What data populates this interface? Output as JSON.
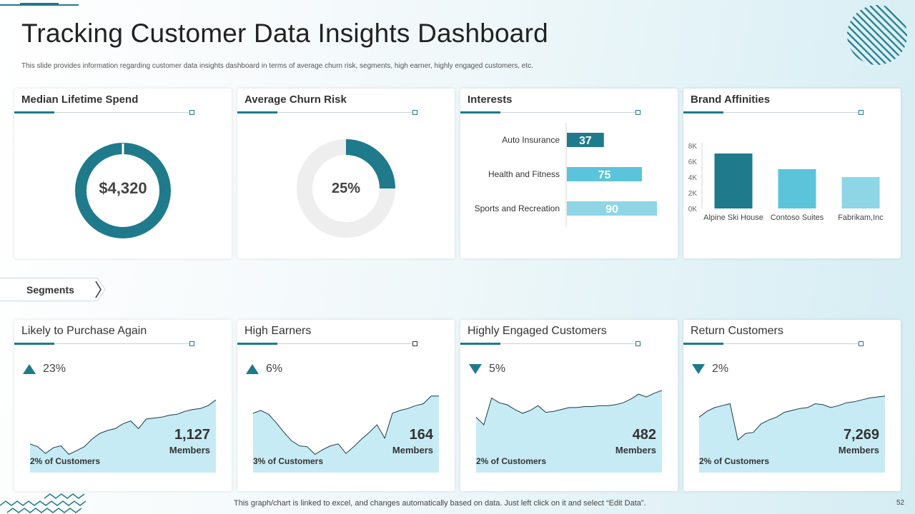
{
  "header": {
    "title": "Tracking Customer Data Insights Dashboard",
    "subtitle": "This slide provides information regarding customer data insights dashboard in terms of average churn risk, segments, high earner, highly engaged customers, etc."
  },
  "colors": {
    "teal": "#1f7a8c",
    "light_teal": "#5bc4db",
    "pale_teal": "#8ed6e6",
    "area_fill": "#c7ebf4",
    "donut_bg": "#eeeeee"
  },
  "top_cards": {
    "median_lifetime_spend": {
      "title": "Median Lifetime Spend",
      "value": "$4,320"
    },
    "average_churn_risk": {
      "title": "Average Churn Risk",
      "value": "25%",
      "fraction": 0.25
    },
    "interests": {
      "title": "Interests"
    },
    "brand_affinities": {
      "title": "Brand Affinities"
    }
  },
  "chart_data": [
    {
      "type": "bar",
      "orientation": "horizontal",
      "categories": [
        "Auto Insurance",
        "Health and Fitness",
        "Sports and Recreation"
      ],
      "values": [
        37,
        75,
        90
      ],
      "labels": [
        "37",
        "75",
        "90"
      ],
      "colors": [
        "#1f7a8c",
        "#5bc4db",
        "#8ed6e6"
      ],
      "xlim": [
        0,
        100
      ]
    },
    {
      "type": "bar",
      "categories": [
        "Alpine Ski House",
        "Contoso Suites",
        "Fabrikam,Inc"
      ],
      "values": [
        7000,
        5000,
        4000
      ],
      "colors": [
        "#1f7a8c",
        "#5bc4db",
        "#8ed6e6"
      ],
      "yticks": [
        "0K",
        "2K",
        "4K",
        "6K",
        "8K"
      ],
      "ylim": [
        0,
        8000
      ]
    }
  ],
  "segments_label": "Segments",
  "segments": [
    {
      "title": "Likely to Purchase Again",
      "trend": "up",
      "change": "23%",
      "count": "1,127",
      "members_label": "Members",
      "pct_customers": "2% of Customers",
      "series": [
        30,
        27,
        20,
        26,
        28,
        19,
        23,
        27,
        35,
        41,
        44,
        46,
        51,
        54,
        46,
        56,
        57,
        58,
        60,
        61,
        64,
        66,
        67,
        70,
        76
      ]
    },
    {
      "title": "High Earners",
      "trend": "up",
      "change": "6%",
      "count": "164",
      "members_label": "Members",
      "pct_customers": "3% of Customers",
      "series": [
        62,
        65,
        61,
        52,
        42,
        33,
        28,
        27,
        19,
        24,
        28,
        30,
        20,
        27,
        35,
        42,
        50,
        36,
        62,
        65,
        67,
        70,
        72,
        80,
        80
      ]
    },
    {
      "title": "Highly Engaged Customers",
      "trend": "down",
      "change": "5%",
      "count": "482",
      "members_label": "Members",
      "pct_customers": "2% of Customers",
      "series": [
        58,
        50,
        78,
        73,
        71,
        66,
        62,
        65,
        70,
        63,
        64,
        66,
        68,
        68,
        69,
        69,
        70,
        70,
        71,
        73,
        77,
        82,
        79,
        83,
        86
      ]
    },
    {
      "title": "Return Customers",
      "trend": "down",
      "change": "2%",
      "count": "7,269",
      "members_label": "Members",
      "pct_customers": "2% of Customers",
      "series": [
        58,
        64,
        68,
        70,
        72,
        34,
        41,
        42,
        51,
        55,
        58,
        63,
        65,
        67,
        68,
        72,
        71,
        68,
        70,
        73,
        74,
        76,
        78,
        79,
        80
      ]
    }
  ],
  "footer": "This graph/chart is linked to excel,  and changes automatically based on data. Just left click on it and select “Edit Data”.",
  "page_number": "52"
}
